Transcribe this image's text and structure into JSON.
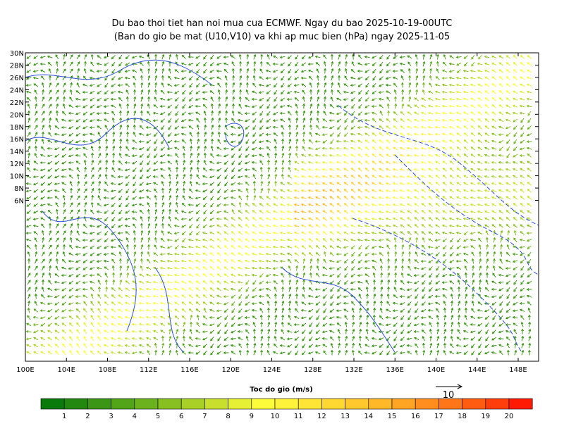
{
  "title": "Du bao thoi tiet han noi mua cua ECMWF. Ngay du bao 2025-10-19-00UTC",
  "subtitle": "(Ban do gio be mat (U10,V10) va khi ap muc bien (hPa) ngay 2025-11-05",
  "lat_labels": [
    "30N",
    "28N",
    "26N",
    "24N",
    "22N",
    "20N",
    "18N",
    "16N",
    "14N",
    "12N",
    "10N",
    "8N",
    "6N"
  ],
  "lon_labels": [
    "100E",
    "104E",
    "108E",
    "112E",
    "116E",
    "120E",
    "124E",
    "128E",
    "132E",
    "136E",
    "140E",
    "144E",
    "148E"
  ],
  "colorbar": {
    "label": "Toc do gio (m/s)",
    "ticks": [
      1,
      2,
      3,
      4,
      5,
      6,
      7,
      8,
      9,
      10,
      11,
      12,
      13,
      14,
      15,
      16,
      17,
      18,
      19,
      20
    ],
    "colors": [
      "#0a7a0a",
      "#22880f",
      "#3a9614",
      "#52a418",
      "#6cb21c",
      "#88c021",
      "#a8d027",
      "#c8e02d",
      "#e6f034",
      "#fcfc3a",
      "#fff23a",
      "#ffe636",
      "#ffd832",
      "#ffc82d",
      "#ffb828",
      "#ffa423",
      "#ff8e1e",
      "#ff7618",
      "#ff5c12",
      "#ff3e0b",
      "#ff1a04"
    ]
  },
  "reference_vector": "10"
}
